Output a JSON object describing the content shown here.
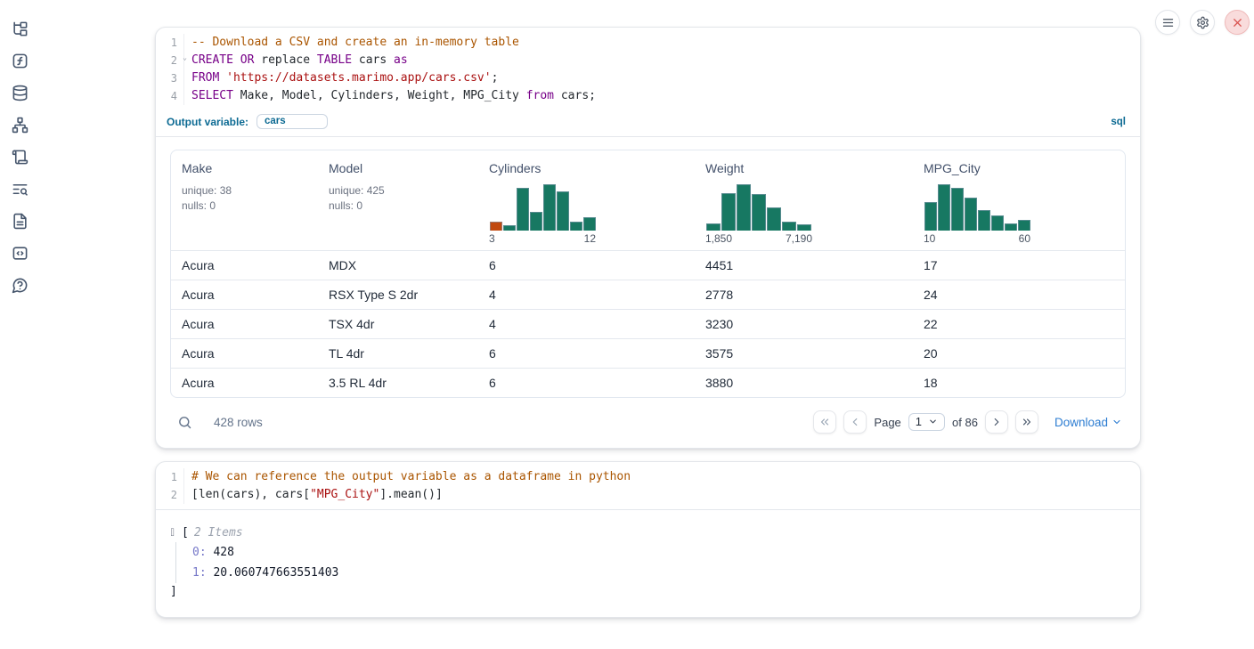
{
  "sidebar": {
    "items": [
      {
        "icon": "file-tree-icon"
      },
      {
        "icon": "function-icon"
      },
      {
        "icon": "database-icon"
      },
      {
        "icon": "dependency-graph-icon"
      },
      {
        "icon": "scroll-icon"
      },
      {
        "icon": "log-search-icon"
      },
      {
        "icon": "document-icon"
      },
      {
        "icon": "code-snippet-icon"
      },
      {
        "icon": "help-chat-icon"
      }
    ]
  },
  "topbar": {
    "menu_icon": "hamburger-menu-icon",
    "settings_icon": "gear-icon",
    "shutdown_icon": "close-icon",
    "shutdown_color": "#d9534f"
  },
  "colors": {
    "accent_blue": "#0c6a93",
    "link_blue": "#2d7dd2",
    "hist_teal": "#177862",
    "hist_orange": "#c1490f"
  },
  "cell1": {
    "code": {
      "lines": [
        {
          "no": "1",
          "tokens": [
            [
              "-- Download a CSV and create an in-memory table",
              "com"
            ]
          ]
        },
        {
          "no": "2",
          "fold": true,
          "tokens": [
            [
              "CREATE",
              "kw"
            ],
            [
              " ",
              "pl"
            ],
            [
              "OR",
              "kw"
            ],
            [
              " replace ",
              "pl"
            ],
            [
              "TABLE",
              "kw"
            ],
            [
              " cars ",
              "pl"
            ],
            [
              "as",
              "kw"
            ]
          ]
        },
        {
          "no": "3",
          "tokens": [
            [
              "FROM",
              "kw"
            ],
            [
              " ",
              "pl"
            ],
            [
              "'https://datasets.marimo.app/cars.csv'",
              "str"
            ],
            [
              ";",
              "pl"
            ]
          ]
        },
        {
          "no": "4",
          "tokens": [
            [
              "SELECT",
              "kw"
            ],
            [
              " Make, Model, Cylinders, Weight, MPG_City ",
              "pl"
            ],
            [
              "from",
              "kw"
            ],
            [
              " cars;",
              "pl"
            ]
          ]
        }
      ]
    },
    "output_variable": {
      "label": "Output variable:",
      "value": "cars",
      "language": "sql"
    },
    "table": {
      "columns": [
        {
          "label": "Make",
          "stats": [
            "unique: 38",
            "nulls: 0"
          ]
        },
        {
          "label": "Model",
          "stats": [
            "unique: 425",
            "nulls: 0"
          ]
        },
        {
          "label": "Cylinders"
        },
        {
          "label": "Weight"
        },
        {
          "label": "MPG_City"
        }
      ],
      "rows": [
        [
          "Acura",
          "MDX",
          "6",
          "4451",
          "17"
        ],
        [
          "Acura",
          "RSX Type S 2dr",
          "4",
          "2778",
          "24"
        ],
        [
          "Acura",
          "TSX 4dr",
          "4",
          "3230",
          "22"
        ],
        [
          "Acura",
          "TL 4dr",
          "6",
          "3575",
          "20"
        ],
        [
          "Acura",
          "3.5 RL 4dr",
          "6",
          "3880",
          "18"
        ]
      ]
    },
    "footer": {
      "rows_label": "428 rows",
      "page_label": "Page",
      "page_value": "1",
      "of_label": "of 86",
      "download_label": "Download"
    }
  },
  "chart_data": [
    {
      "type": "bar",
      "title": "Cylinders histogram",
      "xlabel": "Cylinders",
      "x_min_label": "3",
      "x_max_label": "12",
      "values": [
        0.2,
        0.12,
        0.93,
        0.4,
        1.0,
        0.85,
        0.2,
        0.28
      ],
      "default_color": "#177862",
      "bar_colors": [
        "#c1490f",
        null,
        null,
        null,
        null,
        null,
        null,
        null
      ],
      "ylim": [
        0,
        1
      ]
    },
    {
      "type": "bar",
      "title": "Weight histogram",
      "xlabel": "Weight",
      "x_min_label": "1,850",
      "x_max_label": "7,190",
      "values": [
        0.15,
        0.8,
        1.0,
        0.78,
        0.5,
        0.19,
        0.14
      ],
      "default_color": "#177862",
      "bar_colors": [
        null,
        null,
        null,
        null,
        null,
        null,
        null
      ],
      "ylim": [
        0,
        1
      ]
    },
    {
      "type": "bar",
      "title": "MPG_City histogram",
      "xlabel": "MPG_City",
      "x_min_label": "10",
      "x_max_label": "60",
      "values": [
        0.62,
        1.0,
        0.92,
        0.72,
        0.44,
        0.33,
        0.16,
        0.24
      ],
      "default_color": "#177862",
      "bar_colors": [
        null,
        null,
        null,
        null,
        null,
        null,
        null,
        null
      ],
      "ylim": [
        0,
        1
      ]
    }
  ],
  "cell2": {
    "code": {
      "lines": [
        {
          "no": "1",
          "tokens": [
            [
              "# We can reference the output variable as a dataframe in python",
              "com"
            ]
          ]
        },
        {
          "no": "2",
          "tokens": [
            [
              "[len(cars), cars[",
              "pl"
            ],
            [
              "\"MPG_City\"",
              "str"
            ],
            [
              "].mean()]",
              "pl"
            ]
          ]
        }
      ]
    },
    "output": {
      "open_bracket": "[",
      "items_label": "2 Items",
      "entries": [
        {
          "key": "0:",
          "value": "428"
        },
        {
          "key": "1:",
          "value": "20.060747663551403"
        }
      ],
      "close_bracket": "]"
    }
  }
}
